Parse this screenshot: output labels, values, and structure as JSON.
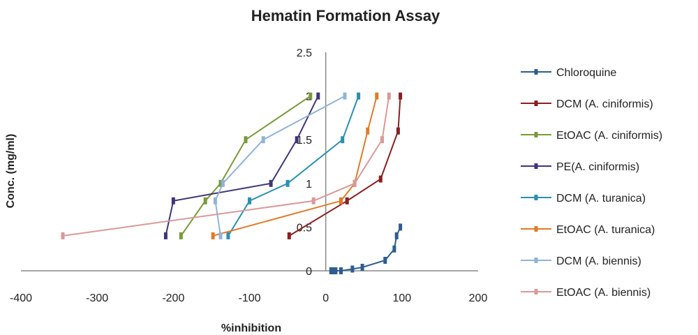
{
  "chart_data": {
    "type": "line",
    "title": "Hematin Formation Assay",
    "xlabel": "%inhibition",
    "ylabel": "Conc. (mg/ml)",
    "xlim": [
      -400,
      200
    ],
    "ylim": [
      0,
      2.5
    ],
    "xticks": [
      "-400",
      "-300",
      "-200",
      "-100",
      "0",
      "100",
      "200"
    ],
    "yticks": [
      "0",
      "0.5",
      "1",
      "1.5",
      "2",
      "2.5"
    ],
    "grid": false,
    "legend": "right",
    "series": [
      {
        "name": "Chloroquine",
        "color": "#2e5d8e",
        "points": [
          [
            7,
            0
          ],
          [
            10,
            0
          ],
          [
            13,
            0
          ],
          [
            20,
            0
          ],
          [
            35,
            0.02
          ],
          [
            48,
            0.04
          ],
          [
            78,
            0.12
          ],
          [
            90,
            0.25
          ],
          [
            93,
            0.4
          ],
          [
            98,
            0.5
          ]
        ]
      },
      {
        "name": "DCM (A. ciniformis)",
        "color": "#8b1f1f",
        "points": [
          [
            -48,
            0.4
          ],
          [
            28,
            0.8
          ],
          [
            72,
            1.05
          ],
          [
            95,
            1.6
          ],
          [
            98,
            2
          ]
        ]
      },
      {
        "name": "EtOAC (A. ciniformis)",
        "color": "#7a9a3a",
        "points": [
          [
            -190,
            0.4
          ],
          [
            -158,
            0.8
          ],
          [
            -138,
            1
          ],
          [
            -105,
            1.5
          ],
          [
            -20,
            2
          ]
        ]
      },
      {
        "name": "PE(A. ciniformis)",
        "color": "#3d3678",
        "points": [
          [
            -210,
            0.4
          ],
          [
            -200,
            0.8
          ],
          [
            -72,
            1
          ],
          [
            -38,
            1.5
          ],
          [
            -10,
            2
          ]
        ]
      },
      {
        "name": "DCM (A. turanica)",
        "color": "#2a8fb0",
        "points": [
          [
            -128,
            0.4
          ],
          [
            -100,
            0.8
          ],
          [
            -50,
            1
          ],
          [
            22,
            1.5
          ],
          [
            43,
            2
          ]
        ]
      },
      {
        "name": "EtOAC (A. turanica)",
        "color": "#e07b2a",
        "points": [
          [
            -148,
            0.4
          ],
          [
            20,
            0.8
          ],
          [
            38,
            1
          ],
          [
            55,
            1.6
          ],
          [
            67,
            2
          ]
        ]
      },
      {
        "name": "DCM (A. biennis)",
        "color": "#8fb4d8",
        "points": [
          [
            -138,
            0.4
          ],
          [
            -145,
            0.8
          ],
          [
            -135,
            1
          ],
          [
            -82,
            1.5
          ],
          [
            25,
            2
          ]
        ]
      },
      {
        "name": "EtOAC (A. biennis)",
        "color": "#d89a98",
        "points": [
          [
            -345,
            0.4
          ],
          [
            -16,
            0.8
          ],
          [
            38,
            1
          ],
          [
            74,
            1.5
          ],
          [
            83,
            2
          ]
        ]
      }
    ]
  }
}
